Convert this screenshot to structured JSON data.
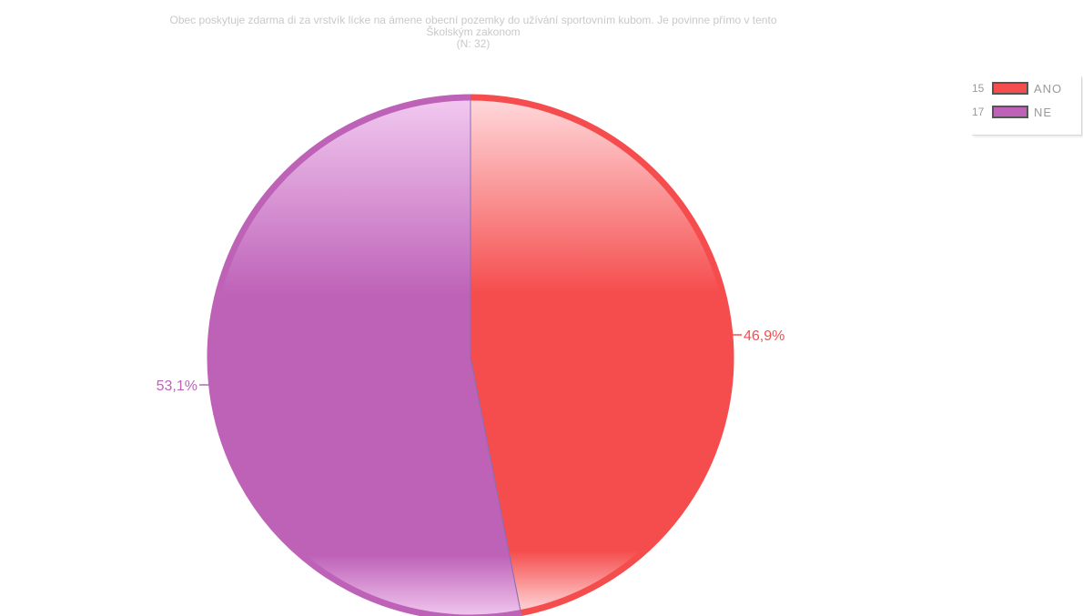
{
  "chart_data": {
    "type": "pie",
    "title_lines": [
      "Obec poskytuje zdarma di za vrstvík lícke na ámene obecní pozemky do užívání sportovním kubom. Je povinne přímo v tento",
      "Školským zakonom",
      "(N: 32)"
    ],
    "slices": [
      {
        "label": "ANO",
        "count": "15",
        "value": 46.9,
        "value_label": "46,9%",
        "color": "#f54d4d",
        "light": "#ffd9dc"
      },
      {
        "label": "NE",
        "count": "17",
        "value": 53.1,
        "value_label": "53,1%",
        "color": "#be62b8",
        "light": "#f2c9f0"
      }
    ],
    "legend_position": "top-right"
  }
}
